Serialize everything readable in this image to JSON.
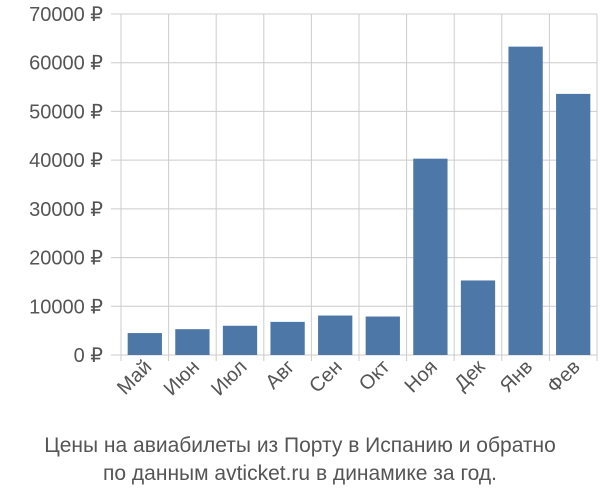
{
  "chart_data": {
    "type": "bar",
    "categories": [
      "Май",
      "Июн",
      "Июл",
      "Авг",
      "Сен",
      "Окт",
      "Ноя",
      "Дек",
      "Янв",
      "Фев"
    ],
    "values": [
      4500,
      5300,
      6000,
      6800,
      8100,
      7900,
      40300,
      15300,
      63300,
      53600
    ],
    "ylim": [
      0,
      70000
    ],
    "yticks": [
      0,
      10000,
      20000,
      30000,
      40000,
      50000,
      60000,
      70000
    ],
    "ytick_labels": [
      "0 ₽",
      "10000 ₽",
      "20000 ₽",
      "30000 ₽",
      "40000 ₽",
      "50000 ₽",
      "60000 ₽",
      "70000 ₽"
    ],
    "grid": true,
    "bar_color": "#4d77a6",
    "grid_color": "#cccccc"
  },
  "caption": {
    "line1": "Цены на авиабилеты из Порту в Испанию и обратно",
    "line2": "по данным avticket.ru в динамике за год."
  }
}
